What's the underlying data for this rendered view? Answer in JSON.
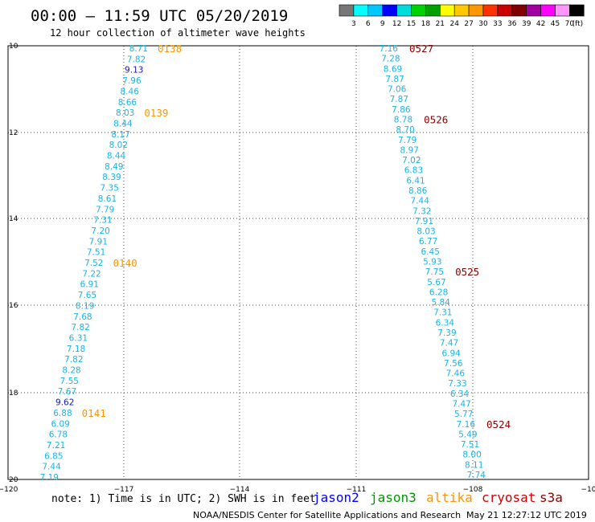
{
  "title": "00:00 – 11:59 UTC 05/20/2019",
  "subtitle": "12 hour collection of altimeter wave heights",
  "legend": {
    "labels": [
      "3",
      "6",
      "9",
      "12",
      "15",
      "18",
      "21",
      "24",
      "27",
      "30",
      "33",
      "36",
      "39",
      "42",
      "45",
      "70"
    ],
    "unit": "(ft)",
    "colors": [
      "#777777",
      "#00ffff",
      "#00c8ff",
      "#0000ff",
      "#00dcdc",
      "#00d200",
      "#00a000",
      "#ffff00",
      "#ffc800",
      "#ff9600",
      "#ff3200",
      "#c80000",
      "#800000",
      "#a000a0",
      "#ff00ff",
      "#ff96ff",
      "#000000"
    ]
  },
  "axes": {
    "lon_labels": [
      "−120",
      "−117",
      "−114",
      "−111",
      "−108",
      "−10"
    ],
    "lat_labels": [
      "10",
      "12",
      "14",
      "16",
      "18",
      "20"
    ]
  },
  "tracks": [
    {
      "heights": [
        "8.71",
        "7.82",
        "9.13",
        "7.96",
        "8.46",
        "8.66",
        "8.03",
        "8.44",
        "8.17",
        "8.02",
        "8.44",
        "8.49",
        "8.39",
        "7.35",
        "8.61",
        "7.79",
        "7.31",
        "7.20",
        "7.91",
        "7.51",
        "7.52",
        "7.22",
        "6.91",
        "7.65",
        "8.19",
        "7.68",
        "7.82",
        "6.31",
        "7.18",
        "7.82",
        "8.28",
        "7.55",
        "7.67",
        "9.62",
        "6.88",
        "6.09",
        "6.78",
        "7.21",
        "6.85",
        "7.44",
        "7.19"
      ],
      "time_labels": [
        {
          "text": "0138",
          "row": 0
        },
        {
          "text": "0139",
          "row": 6
        },
        {
          "text": "0140",
          "row": 20
        },
        {
          "text": "0141",
          "row": 34
        }
      ]
    },
    {
      "heights": [
        "7.16",
        "7.28",
        "8.69",
        "7.87",
        "7.06",
        "7.87",
        "7.86",
        "8.78",
        "8.70",
        "7.79",
        "8.97",
        "7.02",
        "6.83",
        "6.41",
        "8.86",
        "7.44",
        "7.32",
        "7.91",
        "8.03",
        "6.77",
        "6.45",
        "5.93",
        "7.75",
        "5.67",
        "6.28",
        "5.84",
        "7.31",
        "6.34",
        "7.39",
        "7.47",
        "6.94",
        "7.56",
        "7.46",
        "7.33",
        "6.34",
        "7.47",
        "5.77",
        "7.16",
        "5.49",
        "7.51",
        "8.00",
        "8.11",
        "7.74"
      ],
      "time_labels": [
        {
          "text": "0527",
          "row": 0
        },
        {
          "text": "0526",
          "row": 7
        },
        {
          "text": "0525",
          "row": 22
        },
        {
          "text": "0524",
          "row": 37
        }
      ]
    }
  ],
  "colors": {
    "track_text": "#19b4e6",
    "track_text_high": "#1414c8",
    "time_altika": "#ff9600",
    "time_cryosat": "#8b0000"
  },
  "note": "note: 1) Time is in UTC; 2) SWH is in feet",
  "satellites": [
    {
      "name": "jason2",
      "color": "#0000ff"
    },
    {
      "name": "jason3",
      "color": "#009600"
    },
    {
      "name": "altika",
      "color": "#ff9600"
    },
    {
      "name": "cryosat",
      "color": "#d20000"
    },
    {
      "name": "s3a",
      "color": "#8b0000"
    }
  ],
  "credit": "NOAA/NESDIS Center for Satellite Applications and Research",
  "timestamp": "May 21 12:27:12 UTC 2019"
}
